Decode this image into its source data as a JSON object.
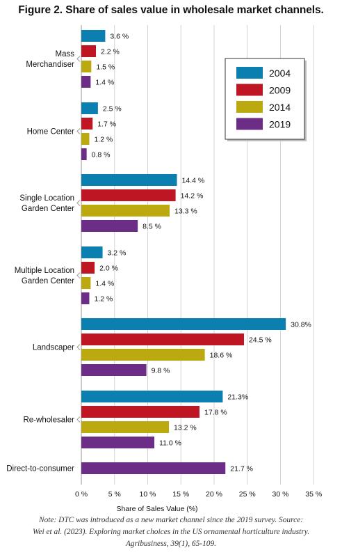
{
  "chart_data": {
    "type": "bar",
    "orientation": "horizontal",
    "title": "Figure 2. Share of sales value in wholesale market channels.",
    "xlabel": "Share of Sales Value (%)",
    "xlim": [
      0,
      35
    ],
    "xticks": [
      "0 %",
      "5 %",
      "10 %",
      "15 %",
      "20 %",
      "25 %",
      "30 %",
      "35 %"
    ],
    "categories": [
      "Mass Merchandiser",
      "Home Center",
      "Single Location Garden Center",
      "Multiple Location Garden Center",
      "Landscaper",
      "Re-wholesaler",
      "Direct-to-consumer"
    ],
    "category_lines": [
      [
        "Mass",
        "Merchandiser"
      ],
      [
        "Home Center"
      ],
      [
        "Single Location",
        "Garden Center"
      ],
      [
        "Multiple Location",
        "Garden Center"
      ],
      [
        "Landscaper"
      ],
      [
        "Re-wholesaler"
      ],
      [
        "Direct-to-consumer"
      ]
    ],
    "series": [
      {
        "name": "2004",
        "color": "#0a7fb0",
        "values": [
          3.6,
          2.5,
          14.4,
          3.2,
          30.8,
          21.3,
          null
        ],
        "labels": [
          "3.6 %",
          "2.5 %",
          "14.4 %",
          "3.2 %",
          "30.8%",
          "21.3%",
          ""
        ]
      },
      {
        "name": "2009",
        "color": "#be1622",
        "values": [
          2.2,
          1.7,
          14.2,
          2.0,
          24.5,
          17.8,
          null
        ],
        "labels": [
          "2.2 %",
          "1.7 %",
          "14.2 %",
          "2.0 %",
          "24.5 %",
          "17.8 %",
          ""
        ]
      },
      {
        "name": "2014",
        "color": "#bca80f",
        "values": [
          1.5,
          1.2,
          13.3,
          1.4,
          18.6,
          13.2,
          null
        ],
        "labels": [
          "1.5 %",
          "1.2 %",
          "13.3 %",
          "1.4 %",
          "18.6 %",
          "13.2 %",
          ""
        ]
      },
      {
        "name": "2019",
        "color": "#6b2d86",
        "values": [
          1.4,
          0.8,
          8.5,
          1.2,
          9.8,
          11.0,
          21.7
        ],
        "labels": [
          "1.4 %",
          "0.8 %",
          "8.5 %",
          "1.2 %",
          "9.8 %",
          "11.0 %",
          "21.7 %"
        ]
      }
    ],
    "grid": true,
    "legend_position": "top-right"
  },
  "note": {
    "lines": [
      "Note: DTC was introduced as a new market channel since the 2019 survey. Source:",
      "Wei et al. (2023). Exploring market choices in the US ornamental horticulture industry.",
      "Agribusiness, 39(1), 65-109."
    ]
  }
}
